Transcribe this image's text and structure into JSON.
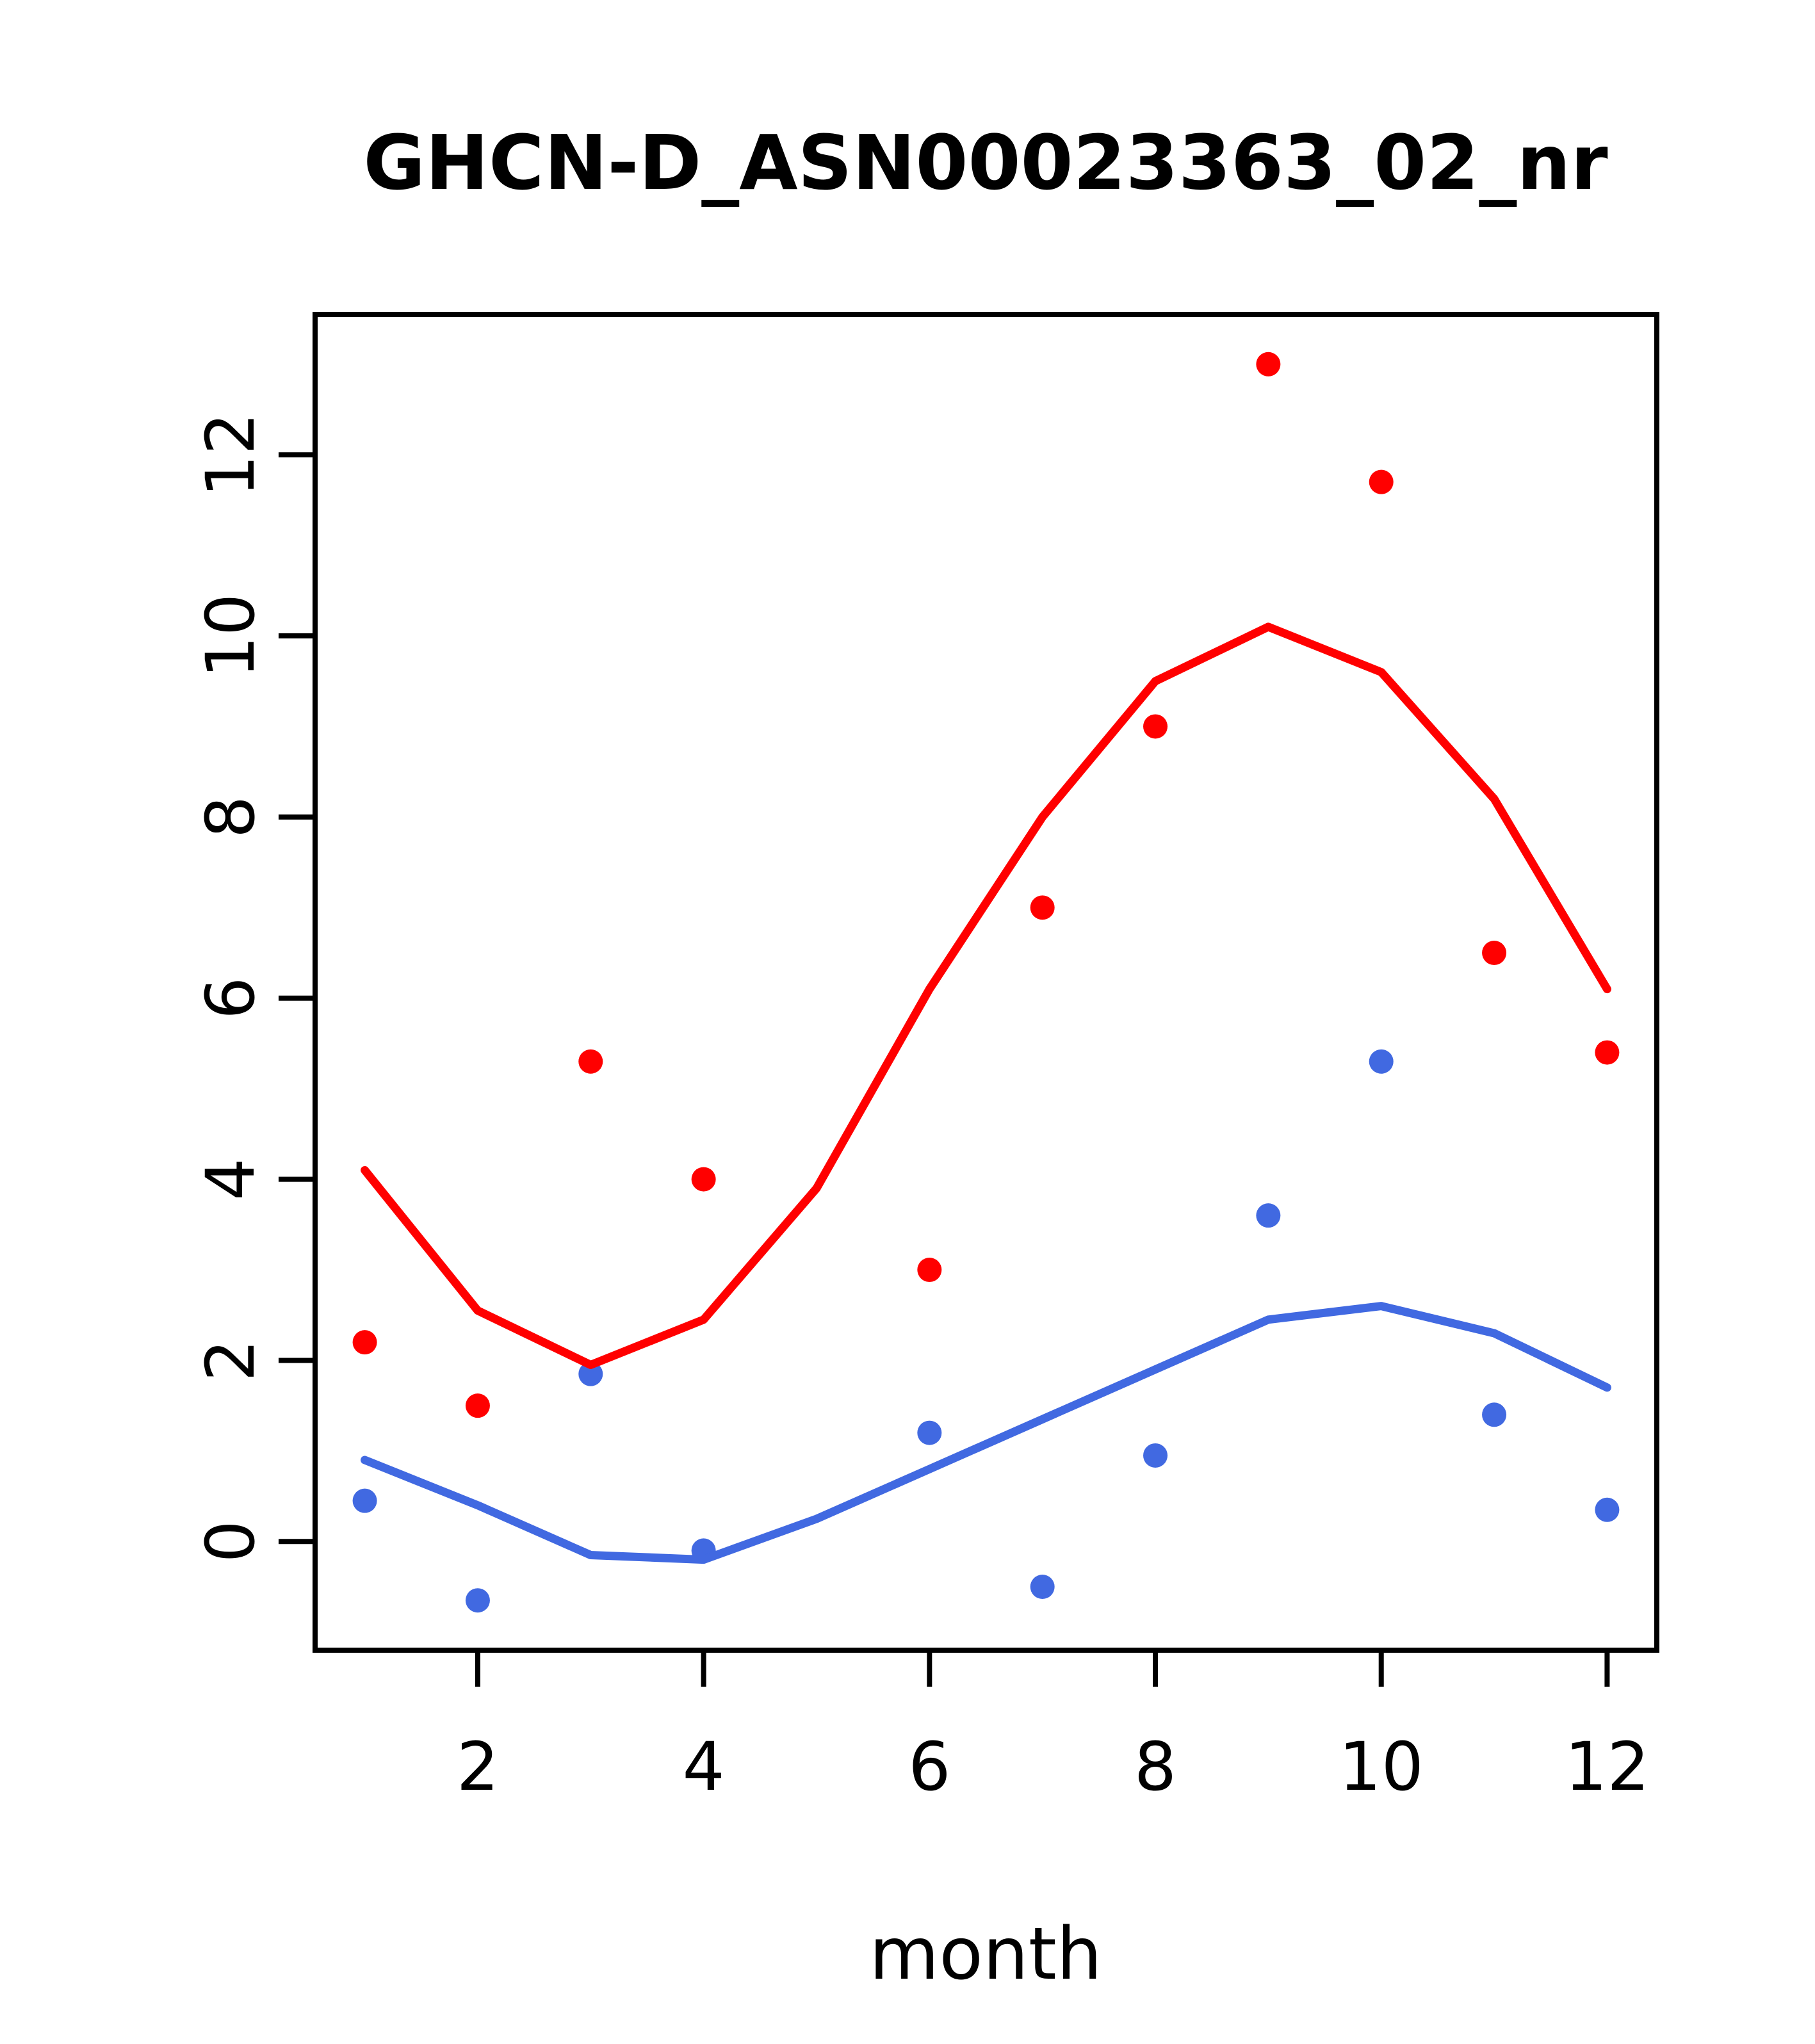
{
  "title": "GHCN-D_ASN00023363_02_nr",
  "chart_data": {
    "type": "scatter",
    "title": "GHCN-D_ASN00023363_02_nr",
    "xlabel": "month",
    "ylabel": "",
    "xlim": [
      0.56,
      12.44
    ],
    "ylim": [
      -1.2,
      13.55
    ],
    "x_ticks": [
      2,
      4,
      6,
      8,
      10,
      12
    ],
    "y_ticks": [
      0,
      2,
      4,
      6,
      8,
      10,
      12
    ],
    "grid": false,
    "legend_position": "none",
    "colors": {
      "red": "#FF0000",
      "blue": "#4169E1",
      "axis": "#000000"
    },
    "series": [
      {
        "name": "red-points",
        "kind": "points",
        "color": "#FF0000",
        "x": [
          1,
          2,
          3,
          4,
          6,
          7,
          8,
          9,
          10,
          11,
          12
        ],
        "y": [
          2.2,
          1.5,
          5.3,
          4.0,
          3.0,
          7.0,
          9.0,
          13.0,
          11.7,
          6.5,
          5.4
        ]
      },
      {
        "name": "blue-points",
        "kind": "points",
        "color": "#4169E1",
        "x": [
          1,
          2,
          3,
          4,
          6,
          7,
          8,
          9,
          10,
          11,
          12
        ],
        "y": [
          0.45,
          -0.65,
          1.85,
          -0.1,
          1.2,
          -0.5,
          0.95,
          3.6,
          5.3,
          1.4,
          0.35
        ]
      },
      {
        "name": "red-fit-line",
        "kind": "line",
        "color": "#FF0000",
        "x": [
          1,
          2,
          3,
          4,
          5,
          6,
          7,
          8,
          9,
          10,
          11,
          12
        ],
        "y": [
          4.1,
          2.55,
          1.95,
          2.45,
          3.9,
          6.1,
          8.0,
          9.5,
          10.1,
          9.6,
          8.2,
          6.1
        ]
      },
      {
        "name": "blue-fit-line",
        "kind": "line",
        "color": "#4169E1",
        "x": [
          1,
          2,
          3,
          4,
          5,
          6,
          7,
          8,
          9,
          10,
          11,
          12
        ],
        "y": [
          0.9,
          0.4,
          -0.15,
          -0.2,
          0.25,
          0.8,
          1.35,
          1.9,
          2.45,
          2.6,
          2.3,
          1.7
        ]
      }
    ]
  }
}
